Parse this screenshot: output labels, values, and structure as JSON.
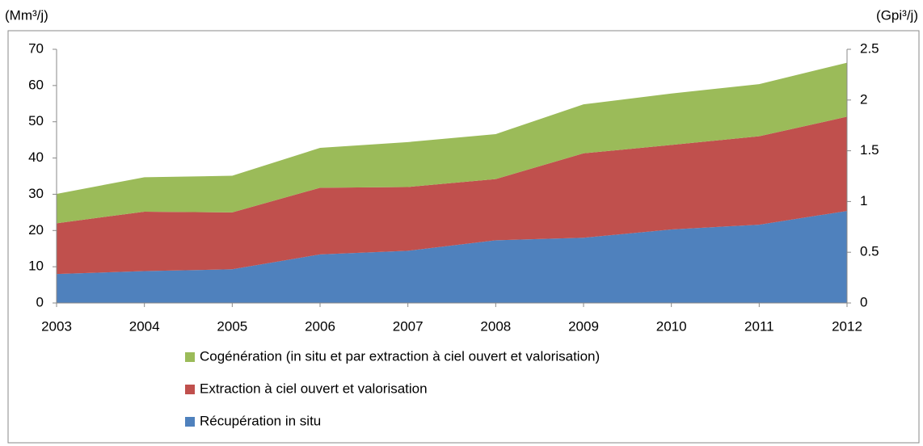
{
  "chart_data": {
    "type": "stacked_area",
    "ylabel": "(Mm³/j)",
    "y2label": "(Gpi³/j)",
    "categories": [
      "2003",
      "2004",
      "2005",
      "2006",
      "2007",
      "2008",
      "2009",
      "2010",
      "2011",
      "2012"
    ],
    "series": [
      {
        "name": "Récupération in situ",
        "color": "#4f81bd",
        "values": [
          8,
          8.8,
          9.3,
          13.4,
          14.4,
          17.3,
          18,
          20.3,
          21.6,
          25.4
        ]
      },
      {
        "name": "Extraction à ciel ouvert et valorisation",
        "color": "#c0504d",
        "values": [
          14,
          16.4,
          15.7,
          18.4,
          17.6,
          16.9,
          23.3,
          23.3,
          24.4,
          26
        ]
      },
      {
        "name": "Cogénération (in situ et par extraction à ciel ouvert et valorisation)",
        "color": "#9bbb59",
        "values": [
          8.1,
          9.5,
          10.1,
          11,
          12.4,
          12.4,
          13.5,
          14.2,
          14.4,
          14.9
        ]
      }
    ],
    "ylim": [
      0,
      70
    ],
    "yticks": [
      0,
      10,
      20,
      30,
      40,
      50,
      60,
      70
    ],
    "y2lim": [
      0,
      2.5
    ],
    "y2ticks": [
      0,
      0.5,
      1,
      1.5,
      2,
      2.5
    ]
  }
}
